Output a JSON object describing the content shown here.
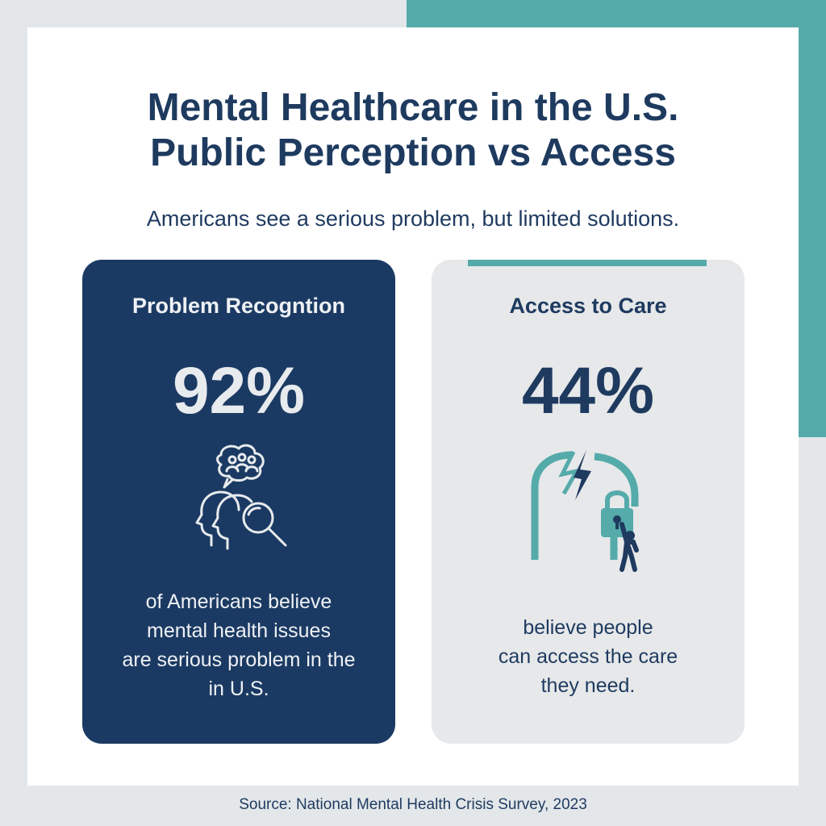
{
  "header": {
    "title_lines": [
      "Mental Healthcare in the U.S.",
      "Public Perception vs Access"
    ],
    "subtitle": "Americans see a serious problem, but limited solutions."
  },
  "panels": [
    {
      "heading": "Problem Recogntion",
      "stat": "92%",
      "icon": "people-search-icon",
      "text_lines": [
        "of Americans believe",
        "mental health issues",
        "are serious problem in the",
        "in U.S."
      ]
    },
    {
      "heading": "Access to Care",
      "stat": "44%",
      "icon": "broken-arch-lock-icon",
      "text_lines": [
        "believe people",
        "can access the care",
        "they need."
      ]
    }
  ],
  "source": "Source: National Mental Health Crisis Survey, 2023",
  "colors": {
    "navy": "#1b3a63",
    "title_navy": "#1e3a5f",
    "teal": "#55aaaa",
    "panel_gray": "#e6e8ea",
    "background": "#e3e7ea"
  }
}
